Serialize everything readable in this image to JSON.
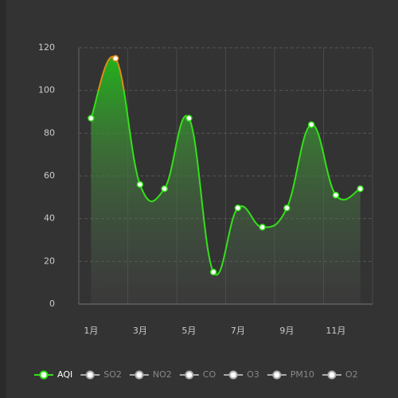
{
  "chart_data": {
    "type": "line",
    "categories": [
      "1月",
      null,
      "3月",
      null,
      "5月",
      null,
      "7月",
      null,
      "9月",
      null,
      "11月",
      null
    ],
    "series": [
      {
        "name": "AQI",
        "color": "#33e019",
        "values": [
          87,
          115,
          56,
          54,
          87,
          15,
          45,
          36,
          45,
          84,
          51,
          54
        ]
      }
    ],
    "hidden_series": [
      "SO2",
      "NO2",
      "CO",
      "O3",
      "PM10",
      "O2"
    ],
    "high_color": "#e08a16",
    "high_threshold": 100,
    "ylim": [
      0,
      120
    ],
    "yticks": [
      0,
      20,
      40,
      60,
      80,
      100,
      120
    ],
    "grid": true
  }
}
